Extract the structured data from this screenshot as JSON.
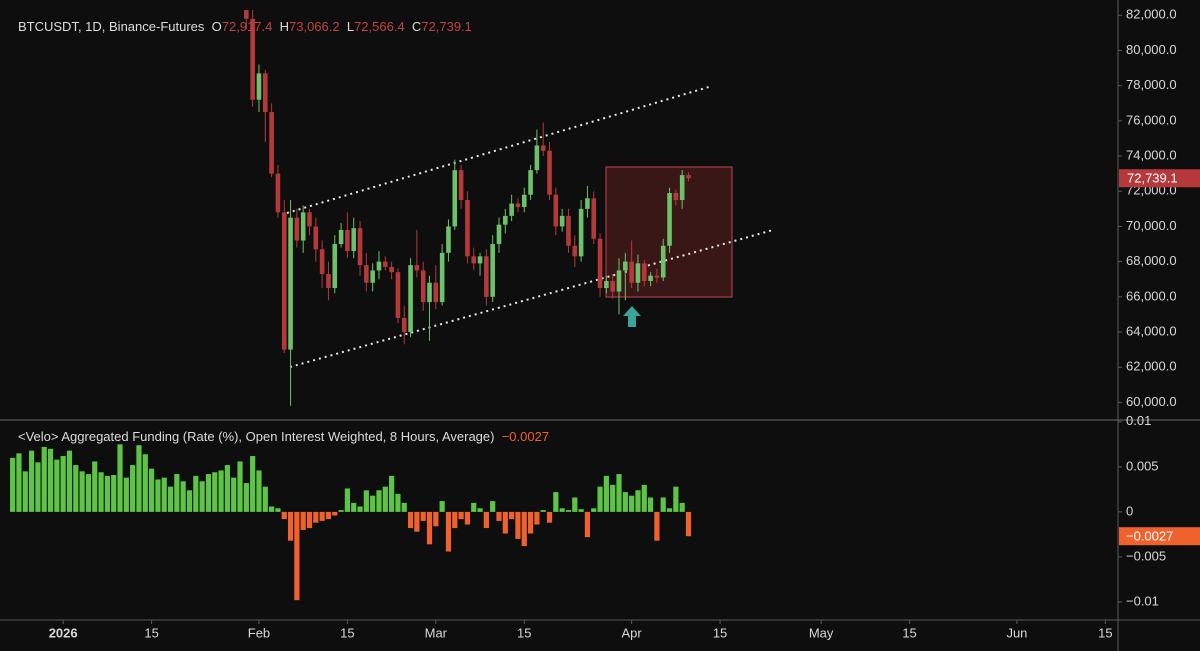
{
  "chart_data": [
    {
      "type": "candlestick",
      "title": "BTCUSDT, 1D, Binance-Futures",
      "legend_values": [
        {
          "key": "O",
          "value": 72917.4,
          "label": "72,917.4"
        },
        {
          "key": "H",
          "value": 73066.2,
          "label": "73,066.2"
        },
        {
          "key": "L",
          "value": 72566.4,
          "label": "72,566.4"
        },
        {
          "key": "C",
          "value": 72739.1,
          "label": "72,739.1"
        }
      ],
      "last_price": {
        "value": 72739.1,
        "label": "72,739.1"
      },
      "up_color": "#6cc16a",
      "down_color": "#b5393b",
      "xlim": [
        "2025-12-22",
        "2026-06-17"
      ],
      "xticks": [
        {
          "value": "2026-01-01",
          "label": "2026"
        },
        {
          "value": "2026-01-15",
          "label": "15"
        },
        {
          "value": "2026-02-01",
          "label": "Feb"
        },
        {
          "value": "2026-02-15",
          "label": "15"
        },
        {
          "value": "2026-03-01",
          "label": "Mar"
        },
        {
          "value": "2026-03-15",
          "label": "15"
        },
        {
          "value": "2026-04-01",
          "label": "Apr"
        },
        {
          "value": "2026-04-15",
          "label": "15"
        },
        {
          "value": "2026-05-01",
          "label": "May"
        },
        {
          "value": "2026-05-15",
          "label": "15"
        },
        {
          "value": "2026-06-01",
          "label": "Jun"
        },
        {
          "value": "2026-06-15",
          "label": "15"
        }
      ],
      "ylim": [
        59000,
        82300
      ],
      "yticks": [
        {
          "value": 60000,
          "label": "60,000.0"
        },
        {
          "value": 62000,
          "label": "62,000.0"
        },
        {
          "value": 64000,
          "label": "64,000.0"
        },
        {
          "value": 66000,
          "label": "66,000.0"
        },
        {
          "value": 68000,
          "label": "68,000.0"
        },
        {
          "value": 70000,
          "label": "70,000.0"
        },
        {
          "value": 72000,
          "label": "72,000.0"
        },
        {
          "value": 74000,
          "label": "74,000.0"
        },
        {
          "value": 76000,
          "label": "76,000.0"
        },
        {
          "value": 78000,
          "label": "78,000.0"
        },
        {
          "value": 80000,
          "label": "80,000.0"
        },
        {
          "value": 82000,
          "label": "82,000.0"
        }
      ],
      "x": [
        "2026-01-30",
        "2026-01-31",
        "2026-02-01",
        "2026-02-02",
        "2026-02-03",
        "2026-02-04",
        "2026-02-05",
        "2026-02-06",
        "2026-02-07",
        "2026-02-08",
        "2026-02-09",
        "2026-02-10",
        "2026-02-11",
        "2026-02-12",
        "2026-02-13",
        "2026-02-14",
        "2026-02-15",
        "2026-02-16",
        "2026-02-17",
        "2026-02-18",
        "2026-02-19",
        "2026-02-20",
        "2026-02-21",
        "2026-02-22",
        "2026-02-23",
        "2026-02-24",
        "2026-02-25",
        "2026-02-26",
        "2026-02-27",
        "2026-02-28",
        "2026-03-01",
        "2026-03-02",
        "2026-03-03",
        "2026-03-04",
        "2026-03-05",
        "2026-03-06",
        "2026-03-07",
        "2026-03-08",
        "2026-03-09",
        "2026-03-10",
        "2026-03-11",
        "2026-03-12",
        "2026-03-13",
        "2026-03-14",
        "2026-03-15",
        "2026-03-16",
        "2026-03-17",
        "2026-03-18",
        "2026-03-19",
        "2026-03-20",
        "2026-03-21",
        "2026-03-22",
        "2026-03-23",
        "2026-03-24",
        "2026-03-25",
        "2026-03-26",
        "2026-03-27",
        "2026-03-28",
        "2026-03-29",
        "2026-03-30",
        "2026-03-31",
        "2026-04-01",
        "2026-04-02",
        "2026-04-03",
        "2026-04-04",
        "2026-04-05",
        "2026-04-06",
        "2026-04-07",
        "2026-04-08",
        "2026-04-09",
        "2026-04-10"
      ],
      "open": [
        84000,
        81800,
        77200,
        78700,
        76500,
        73000,
        70800,
        63000,
        70500,
        69200,
        70800,
        70000,
        68700,
        67300,
        66500,
        69000,
        69800,
        68600,
        69900,
        67800,
        66800,
        67500,
        68000,
        67700,
        67400,
        64800,
        64000,
        67800,
        67500,
        65700,
        66800,
        65700,
        68500,
        70000,
        73200,
        71500,
        68300,
        67900,
        68300,
        66000,
        69000,
        70100,
        70600,
        71300,
        71100,
        71800,
        73200,
        74600,
        74300,
        71800,
        70000,
        70600,
        68900,
        68300,
        71000,
        71600,
        69300,
        66500,
        66900,
        66300,
        67500,
        68000,
        66800,
        67900,
        66900,
        67200,
        67100,
        68900,
        71900,
        71500,
        72917.4
      ],
      "high": [
        84500,
        82500,
        79200,
        78900,
        77000,
        73500,
        71500,
        71500,
        71000,
        71200,
        71000,
        70500,
        69200,
        68000,
        69500,
        70200,
        70800,
        70500,
        70300,
        68500,
        67900,
        68600,
        68300,
        68000,
        67600,
        65500,
        68200,
        69800,
        68000,
        67200,
        67800,
        69000,
        70400,
        73800,
        73500,
        72000,
        68800,
        68500,
        68700,
        69500,
        70500,
        71000,
        71800,
        71600,
        72200,
        73500,
        75500,
        75900,
        74800,
        72200,
        71000,
        71000,
        69500,
        71500,
        72300,
        72000,
        69600,
        67200,
        67300,
        68200,
        68500,
        69200,
        68400,
        68100,
        67400,
        67600,
        69300,
        72200,
        72100,
        73200,
        73066.2
      ],
      "low": [
        81200,
        76800,
        76500,
        74800,
        72800,
        70500,
        62800,
        59800,
        68800,
        68500,
        69500,
        68000,
        66500,
        65800,
        66200,
        68800,
        68200,
        68200,
        67200,
        66300,
        66300,
        67000,
        67500,
        67000,
        64500,
        63300,
        63700,
        67100,
        65200,
        63500,
        65300,
        65500,
        68000,
        69800,
        71000,
        67900,
        67500,
        67200,
        65500,
        65700,
        68500,
        69600,
        70300,
        70800,
        70800,
        71500,
        73000,
        74000,
        71500,
        69500,
        69700,
        68500,
        67700,
        68000,
        70500,
        69000,
        66000,
        66200,
        65900,
        65000,
        65800,
        66500,
        66300,
        66600,
        66600,
        66800,
        66900,
        68500,
        71200,
        71000,
        72566.4
      ],
      "close": [
        81800,
        77200,
        78700,
        76500,
        73000,
        70800,
        63000,
        70500,
        69200,
        70800,
        70000,
        68700,
        67300,
        66500,
        69000,
        69800,
        68600,
        69900,
        67800,
        66800,
        67500,
        68000,
        67700,
        67400,
        64800,
        64000,
        67800,
        67500,
        65700,
        66800,
        65700,
        68500,
        70000,
        73200,
        71500,
        68300,
        67900,
        68300,
        66000,
        69000,
        70100,
        70600,
        71300,
        71100,
        71800,
        73200,
        74600,
        74300,
        71800,
        70000,
        70600,
        68900,
        68300,
        71000,
        71600,
        69300,
        66500,
        66900,
        66300,
        67500,
        68000,
        66800,
        67900,
        66900,
        67200,
        67100,
        68900,
        71900,
        71500,
        72917.4,
        72739.1
      ]
    },
    {
      "type": "bar",
      "title": "<Velo> Aggregated Funding (Rate (%), Open Interest Weighted, 8 Hours, Average)",
      "last_value": {
        "value": -0.0027,
        "label": "−0.0027"
      },
      "positive_color": "#5dc447",
      "negative_color": "#f0622d",
      "xlim": [
        "2025-12-22",
        "2026-06-17"
      ],
      "ylim": [
        -0.012,
        0.0102
      ],
      "yticks": [
        0.01,
        0.005,
        0,
        {
          "value": -0.005,
          "label": "−0.005"
        },
        {
          "value": -0.01,
          "label": "−0.01"
        }
      ],
      "x": [
        "2025-12-24",
        "2025-12-25",
        "2025-12-26",
        "2025-12-27",
        "2025-12-28",
        "2025-12-29",
        "2025-12-30",
        "2025-12-31",
        "2026-01-01",
        "2026-01-02",
        "2026-01-03",
        "2026-01-04",
        "2026-01-05",
        "2026-01-06",
        "2026-01-07",
        "2026-01-08",
        "2026-01-09",
        "2026-01-10",
        "2026-01-11",
        "2026-01-12",
        "2026-01-13",
        "2026-01-14",
        "2026-01-15",
        "2026-01-16",
        "2026-01-17",
        "2026-01-18",
        "2026-01-19",
        "2026-01-20",
        "2026-01-21",
        "2026-01-22",
        "2026-01-23",
        "2026-01-24",
        "2026-01-25",
        "2026-01-26",
        "2026-01-27",
        "2026-01-28",
        "2026-01-29",
        "2026-01-30",
        "2026-01-31",
        "2026-02-01",
        "2026-02-02",
        "2026-02-03",
        "2026-02-04",
        "2026-02-05",
        "2026-02-06",
        "2026-02-07",
        "2026-02-08",
        "2026-02-09",
        "2026-02-10",
        "2026-02-11",
        "2026-02-12",
        "2026-02-13",
        "2026-02-14",
        "2026-02-15",
        "2026-02-16",
        "2026-02-17",
        "2026-02-18",
        "2026-02-19",
        "2026-02-20",
        "2026-02-21",
        "2026-02-22",
        "2026-02-23",
        "2026-02-24",
        "2026-02-25",
        "2026-02-26",
        "2026-02-27",
        "2026-02-28",
        "2026-03-01",
        "2026-03-02",
        "2026-03-03",
        "2026-03-04",
        "2026-03-05",
        "2026-03-06",
        "2026-03-07",
        "2026-03-08",
        "2026-03-09",
        "2026-03-10",
        "2026-03-11",
        "2026-03-12",
        "2026-03-13",
        "2026-03-14",
        "2026-03-15",
        "2026-03-16",
        "2026-03-17",
        "2026-03-18",
        "2026-03-19",
        "2026-03-20",
        "2026-03-21",
        "2026-03-22",
        "2026-03-23",
        "2026-03-24",
        "2026-03-25",
        "2026-03-26",
        "2026-03-27",
        "2026-03-28",
        "2026-03-29",
        "2026-03-30",
        "2026-03-31",
        "2026-04-01",
        "2026-04-02",
        "2026-04-03",
        "2026-04-04",
        "2026-04-05",
        "2026-04-06",
        "2026-04-07",
        "2026-04-08",
        "2026-04-09",
        "2026-04-10"
      ],
      "values": [
        0.006,
        0.0065,
        0.0045,
        0.0068,
        0.0055,
        0.0072,
        0.007,
        0.0058,
        0.0062,
        0.0068,
        0.0052,
        0.0045,
        0.0042,
        0.0056,
        0.0044,
        0.004,
        0.0041,
        0.0075,
        0.0038,
        0.0052,
        0.0074,
        0.0064,
        0.0048,
        0.0036,
        0.0038,
        0.0028,
        0.0042,
        0.0034,
        0.0024,
        0.004,
        0.0034,
        0.0042,
        0.0044,
        0.0046,
        0.0052,
        0.0038,
        0.0056,
        0.0032,
        0.0062,
        0.0046,
        0.0028,
        0.0006,
        0.0004,
        -0.0008,
        -0.0032,
        -0.0098,
        -0.002,
        -0.0018,
        -0.0012,
        -0.001,
        -0.0008,
        -0.0004,
        0.0002,
        0.0026,
        0.001,
        0.0006,
        0.0024,
        0.0018,
        0.0024,
        0.0028,
        0.004,
        0.002,
        0.001,
        -0.0018,
        -0.0022,
        -0.001,
        -0.0036,
        -0.0016,
        0.0012,
        -0.0044,
        -0.0018,
        -0.0008,
        -0.0014,
        0.001,
        0.0004,
        -0.0018,
        0.0012,
        -0.001,
        -0.0024,
        -0.0008,
        -0.003,
        -0.0038,
        -0.0024,
        -0.0014,
        0.0002,
        -0.0012,
        0.0022,
        0.0004,
        0.0002,
        0.0016,
        0.0003,
        -0.0028,
        0.0004,
        0.0028,
        0.004,
        0.003,
        0.0042,
        0.0022,
        0.0018,
        0.0024,
        0.003,
        0.0016,
        -0.0032,
        0.0016,
        0.0004,
        0.0028,
        0.001,
        -0.0027
      ]
    }
  ]
}
